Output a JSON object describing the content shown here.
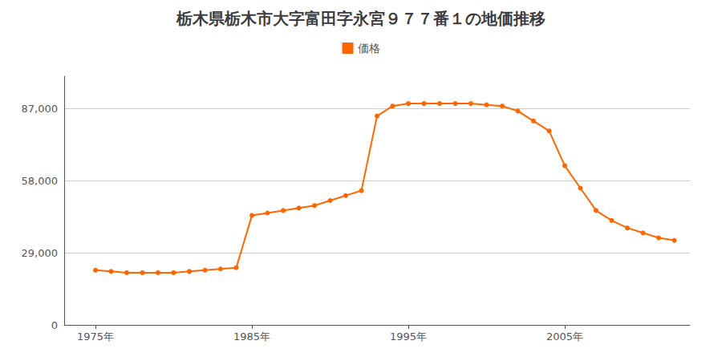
{
  "chart_data": {
    "type": "line",
    "title": "栃木県栃木市大字富田字永宮９７７番１の地価推移",
    "x": [
      1975,
      1976,
      1977,
      1978,
      1979,
      1980,
      1981,
      1982,
      1983,
      1984,
      1985,
      1986,
      1987,
      1988,
      1989,
      1990,
      1991,
      1992,
      1993,
      1994,
      1995,
      1996,
      1997,
      1998,
      1999,
      2000,
      2001,
      2002,
      2003,
      2004,
      2005,
      2006,
      2007,
      2008,
      2009,
      2010,
      2011,
      2012
    ],
    "series": [
      {
        "name": "価格",
        "color": "#FF6600",
        "marker": "circle",
        "values": [
          22000,
          21500,
          21000,
          21000,
          21000,
          21000,
          21500,
          22000,
          22500,
          23000,
          44000,
          45000,
          46000,
          47000,
          48000,
          50000,
          52000,
          54000,
          84000,
          88000,
          89000,
          89000,
          89000,
          89000,
          89000,
          88500,
          88000,
          86000,
          82000,
          78000,
          64000,
          55000,
          46000,
          42000,
          39000,
          37000,
          35000,
          34000
        ]
      }
    ],
    "xlim": [
      1973,
      2013
    ],
    "xticks": [
      {
        "value": 1975,
        "label": "1975年"
      },
      {
        "value": 1985,
        "label": "1985年"
      },
      {
        "value": 1995,
        "label": "1995年"
      },
      {
        "value": 2005,
        "label": "2005年"
      }
    ],
    "ylim": [
      0,
      100000
    ],
    "yticks": [
      0,
      {
        "value": 29000,
        "label": "29,000"
      },
      {
        "value": 58000,
        "label": "58,000"
      },
      {
        "value": 87000,
        "label": "87,000"
      }
    ],
    "grid": "y",
    "legend": "top"
  }
}
